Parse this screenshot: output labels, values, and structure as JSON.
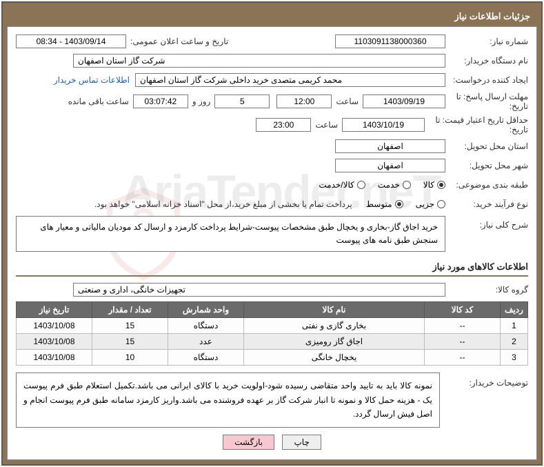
{
  "title_bar": "جزئیات اطلاعات نیاز",
  "watermark_text": "AriaTender.neT",
  "labels": {
    "need_number": "شماره نیاز:",
    "buyer_org": "نام دستگاه خریدار:",
    "requester": "ایجاد کننده درخواست:",
    "contact_link": "اطلاعات تماس خریدار",
    "deadline_send": "مهلت ارسال پاسخ: تا تاریخ:",
    "time": "ساعت",
    "days_and": "روز و",
    "remaining": "ساعت باقی مانده",
    "price_validity": "حداقل تاریخ اعتبار قیمت: تا تاریخ:",
    "delivery_province": "استان محل تحویل:",
    "delivery_city": "شهر محل تحویل:",
    "subject_class": "طبقه بندی موضوعی:",
    "process_type": "نوع فرآیند خرید:",
    "process_note": "پرداخت تمام یا بخشی از مبلغ خرید،از محل \"اسناد خزانه اسلامی\" خواهد بود.",
    "general_desc": "شرح کلی نیاز:",
    "product_group": "گروه کالا:",
    "buyer_notes": "توضیحات خریدار:",
    "announce_datetime": "تاریخ و ساعت اعلان عمومی:"
  },
  "values": {
    "need_number": "1103091138000360",
    "announce_datetime": "1403/09/14 - 08:34",
    "buyer_org": "شرکت گاز استان اصفهان",
    "requester": "محمد کریمی متصدی خرید داخلی شرکت گاز استان اصفهان",
    "deadline_date": "1403/09/19",
    "deadline_time": "12:00",
    "remaining_days": "5",
    "remaining_time": "03:07:42",
    "validity_date": "1403/10/19",
    "validity_time": "23:00",
    "delivery_province": "اصفهان",
    "delivery_city": "اصفهان",
    "general_desc": "خرید اجاق گاز-بخاری و یخچال طبق مشخصات پیوست-شرایط پرداخت کارمزد و ارسال کد مودیان مالیاتی و معیار های سنجش طبق نامه های پیوست",
    "product_group": "تجهیزات خانگی، اداری و صنعتی",
    "buyer_notes": "نمونه کالا باید به تایید واحد متقاضی رسیده شود-اولویت خرید با کالای ایرانی می باشد.تکمیل استعلام طبق فرم پیوست یک - هزینه حمل کالا و نمونه تا انبار شرکت گاز بر عهده فروشنده می باشد.واریز کارمزد سامانه طبق فرم پیوست انجام و اصل فیش ارسال گردد."
  },
  "radios": {
    "subject": [
      {
        "label": "کالا",
        "checked": true
      },
      {
        "label": "خدمت",
        "checked": false
      },
      {
        "label": "کالا/خدمت",
        "checked": false
      }
    ],
    "process": [
      {
        "label": "جزیی",
        "checked": false
      },
      {
        "label": "متوسط",
        "checked": true
      }
    ]
  },
  "section_header": "اطلاعات کالاهای مورد نیاز",
  "table": {
    "headers": [
      "ردیف",
      "کد کالا",
      "نام کالا",
      "واحد شمارش",
      "تعداد / مقدار",
      "تاریخ نیاز"
    ],
    "col_widths": [
      "40px",
      "110px",
      "auto",
      "110px",
      "110px",
      "110px"
    ],
    "rows": [
      [
        "1",
        "--",
        "بخاری گازی و نفتی",
        "دستگاه",
        "15",
        "1403/10/08"
      ],
      [
        "2",
        "--",
        "اجاق گاز رومیزی",
        "عدد",
        "15",
        "1403/10/08"
      ],
      [
        "3",
        "--",
        "یخچال خانگی",
        "دستگاه",
        "10",
        "1403/10/08"
      ]
    ]
  },
  "buttons": {
    "print": "چاپ",
    "back": "بازگشت"
  },
  "colors": {
    "frame": "#8b7355",
    "header_bg": "#6b6b6b",
    "btn_primary": "#f8c8d0"
  }
}
